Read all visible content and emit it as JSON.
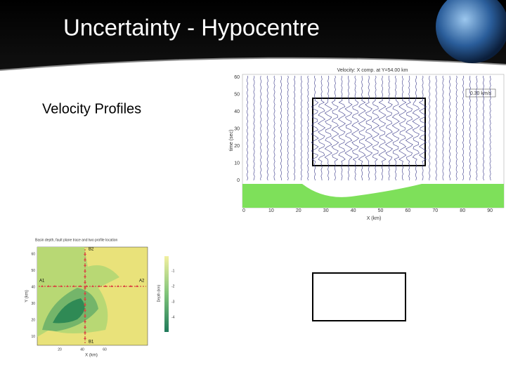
{
  "header": {
    "title": "Uncertainty - Hypocentre"
  },
  "body": {
    "heading": "Velocity Profiles"
  },
  "seismogram": {
    "title": "Velocity: X comp. at Y=54.00 km",
    "scale_label": "0.30 km/s",
    "y_label": "time (sec)",
    "x_label": "X (km)",
    "yticks": [
      60,
      50,
      40,
      30,
      20,
      10,
      0
    ],
    "xticks": [
      0,
      10,
      20,
      30,
      40,
      50,
      60,
      70,
      80,
      90
    ]
  },
  "map": {
    "title": "Basin depth, fault plane trace and two profile location",
    "y_label": "Y (km)",
    "x_label": "X (km)",
    "colorbar_label": "Depth (km)",
    "yticks": [
      60,
      50,
      40,
      30,
      20,
      10
    ],
    "xticks": [
      20,
      40,
      60
    ],
    "colorbar_ticks": [
      -1,
      -2,
      -3,
      -4
    ],
    "markers": [
      "B2",
      "A1",
      "A2",
      "B1"
    ]
  }
}
